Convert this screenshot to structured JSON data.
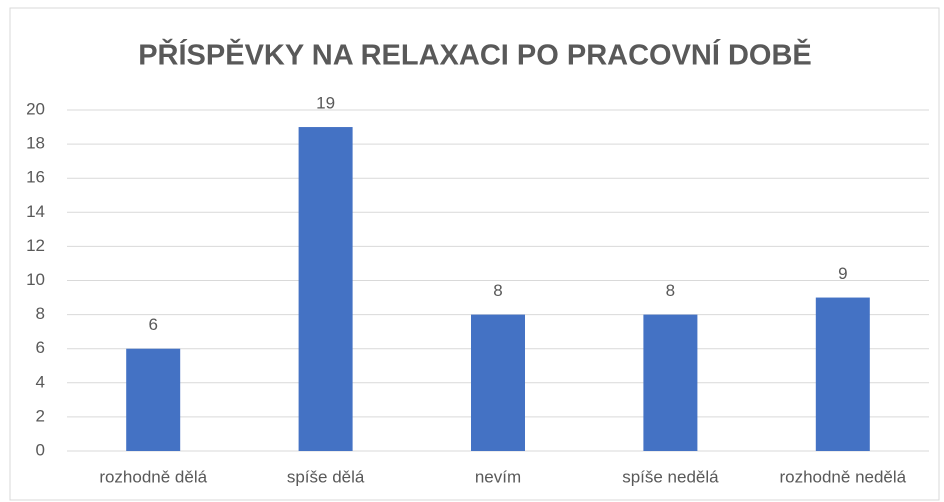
{
  "chart_data": {
    "type": "bar",
    "title": "PŘÍSPĚVKY NA RELAXACI PO PRACOVNÍ DOBĚ",
    "categories": [
      "rozhodně dělá",
      "spíše dělá",
      "nevím",
      "spíše nedělá",
      "rozhodně nedělá"
    ],
    "values": [
      6,
      19,
      8,
      8,
      9
    ],
    "color": "#4472c4",
    "ylim": [
      0,
      20
    ],
    "yticks": [
      0,
      2,
      4,
      6,
      8,
      10,
      12,
      14,
      16,
      18,
      20
    ],
    "grid": true
  }
}
